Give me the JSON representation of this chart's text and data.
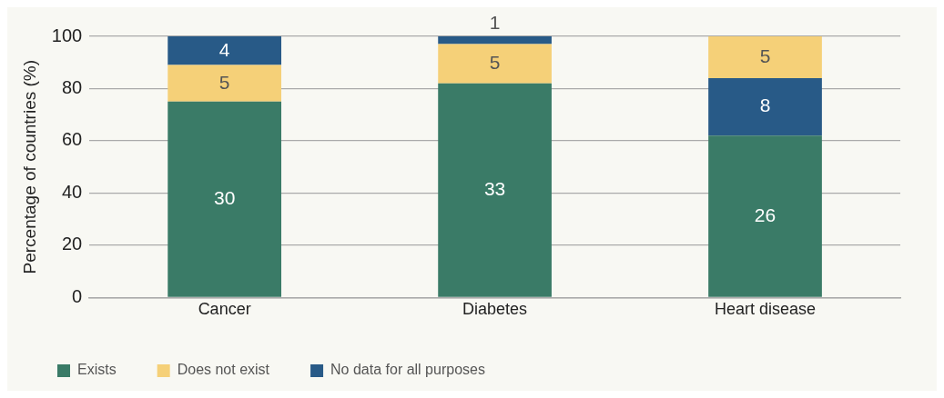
{
  "chart_data": {
    "type": "bar",
    "ylabel": "Percentage of countries (%)",
    "categories": [
      "Cancer",
      "Diabetes",
      "Heart disease"
    ],
    "series": [
      {
        "name": "Exists",
        "color": "#3a7b67",
        "values": [
          75,
          82,
          62
        ],
        "base": [
          0,
          0,
          0
        ]
      },
      {
        "name": "Does not exist",
        "color": "#f5d078",
        "values": [
          14,
          15,
          16
        ],
        "base": [
          75,
          82,
          84
        ]
      },
      {
        "name": "No data for all purposes",
        "color": "#285a87",
        "values": [
          11,
          3,
          22
        ],
        "base": [
          89,
          97,
          62
        ]
      }
    ],
    "annotations": [
      "30",
      {
        "text": "5",
        "x": "Cancer",
        "y": 89
      },
      {
        "text": "4",
        "x": "Cancer",
        "y": 100
      },
      "33",
      {
        "text": "5",
        "x": "Diabetes",
        "y": 97
      },
      {
        "text": "1",
        "x": "Diabetes",
        "y": 100
      },
      "26",
      {
        "text": "8",
        "x": "Heart disease",
        "y": 84
      },
      {
        "text": "5",
        "x": "Heart disease",
        "y": 100
      }
    ],
    "ylim": [
      0,
      100
    ],
    "yticks": [
      0,
      20,
      40,
      60,
      80,
      100
    ],
    "grid": "y",
    "legend": "bottom left"
  }
}
